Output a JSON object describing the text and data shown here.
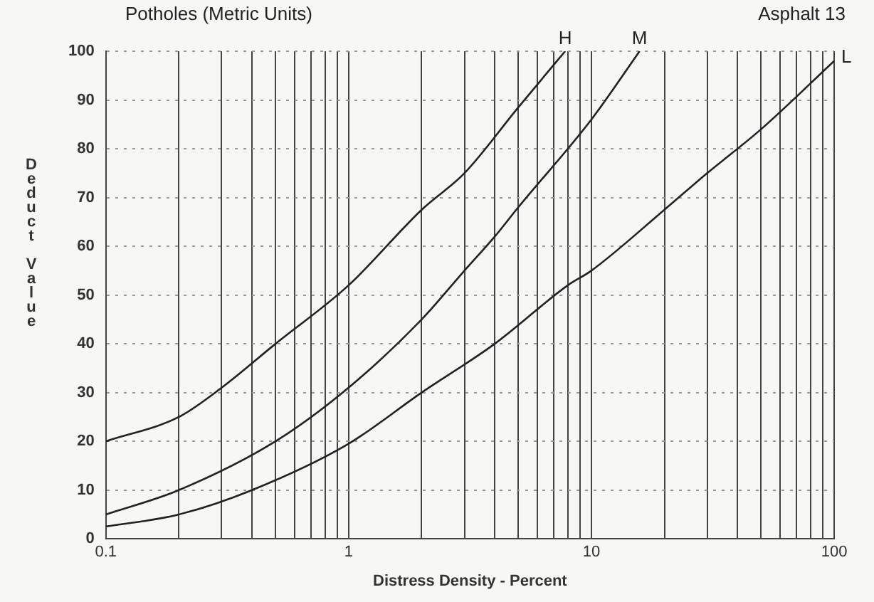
{
  "chart_data": {
    "type": "line",
    "title": "Potholes (Metric Units)",
    "annotations": [
      "Asphalt 13"
    ],
    "xlabel": "Distress Density - Percent",
    "ylabel": "Deduct Value",
    "log": "x",
    "grid": true,
    "legend": false,
    "marker": "none",
    "line_style": "solid",
    "xlim": [
      0.1,
      100
    ],
    "ylim": [
      0,
      100
    ],
    "xticks": [
      0.1,
      {
        "value": 0.2,
        "label": null
      },
      {
        "value": 0.3,
        "label": null
      },
      {
        "value": 0.4,
        "label": null
      },
      {
        "value": 0.5,
        "label": null
      },
      {
        "value": 0.6,
        "label": null
      },
      {
        "value": 0.7,
        "label": null
      },
      {
        "value": 0.8,
        "label": null
      },
      {
        "value": 0.9,
        "label": null
      },
      1,
      {
        "value": 2,
        "label": null
      },
      {
        "value": 3,
        "label": null
      },
      {
        "value": 4,
        "label": null
      },
      {
        "value": 5,
        "label": null
      },
      {
        "value": 6,
        "label": null
      },
      {
        "value": 7,
        "label": null
      },
      {
        "value": 8,
        "label": null
      },
      {
        "value": 9,
        "label": null
      },
      10,
      {
        "value": 20,
        "label": null
      },
      {
        "value": 30,
        "label": null
      },
      {
        "value": 40,
        "label": null
      },
      {
        "value": 50,
        "label": null
      },
      {
        "value": 60,
        "label": null
      },
      {
        "value": 70,
        "label": null
      },
      {
        "value": 80,
        "label": null
      },
      {
        "value": 90,
        "label": null
      },
      100
    ],
    "yticks": [
      0,
      10,
      20,
      30,
      40,
      50,
      60,
      70,
      80,
      90,
      100
    ],
    "series": [
      {
        "name": "H",
        "color": "#222222",
        "x": [
          0.1,
          0.2,
          0.3,
          0.5,
          1,
          2,
          3,
          5,
          7.8
        ],
        "values": [
          20,
          25,
          31,
          40,
          52,
          67.5,
          75,
          88.5,
          100
        ]
      },
      {
        "name": "M",
        "color": "#222222",
        "x": [
          0.1,
          0.2,
          0.5,
          1,
          2,
          3,
          4,
          5,
          10,
          15.8
        ],
        "values": [
          5,
          10,
          20,
          31,
          45,
          55,
          62,
          68,
          86,
          100
        ]
      },
      {
        "name": "L",
        "color": "#222222",
        "x": [
          0.1,
          0.2,
          0.4,
          1,
          2,
          4,
          8,
          10,
          20,
          30,
          50,
          100
        ],
        "values": [
          2.5,
          5,
          10,
          19.5,
          30,
          40,
          52,
          55,
          67.5,
          75,
          84,
          98
        ]
      }
    ]
  }
}
